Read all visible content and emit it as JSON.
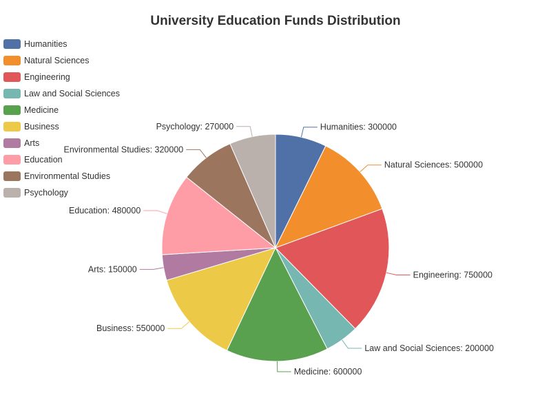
{
  "chart_data": {
    "type": "pie",
    "title": "University Education Funds Distribution",
    "slices": [
      {
        "name": "Humanities",
        "value": 300000,
        "color": "#5070a8",
        "label": "Humanities: 300000"
      },
      {
        "name": "Natural Sciences",
        "value": 500000,
        "color": "#f28e2b",
        "label": "Natural Sciences: 500000"
      },
      {
        "name": "Engineering",
        "value": 750000,
        "color": "#e15759",
        "label": "Engineering: 750000"
      },
      {
        "name": "Law and Social Sciences",
        "value": 200000,
        "color": "#76b7b2",
        "label": "Law and Social Sciences: 200000"
      },
      {
        "name": "Medicine",
        "value": 600000,
        "color": "#59a14f",
        "label": "Medicine: 600000"
      },
      {
        "name": "Business",
        "value": 550000,
        "color": "#edc948",
        "label": "Business: 550000"
      },
      {
        "name": "Arts",
        "value": 150000,
        "color": "#b07aa1",
        "label": "Arts: 150000"
      },
      {
        "name": "Education",
        "value": 480000,
        "color": "#ff9da7",
        "label": "Education: 480000"
      },
      {
        "name": "Environmental Studies",
        "value": 320000,
        "color": "#9c755f",
        "label": "Environmental Studies: 320000"
      },
      {
        "name": "Psychology",
        "value": 270000,
        "color": "#bab0ac",
        "label": "Psychology: 270000"
      }
    ],
    "legend_position": "top-left"
  }
}
